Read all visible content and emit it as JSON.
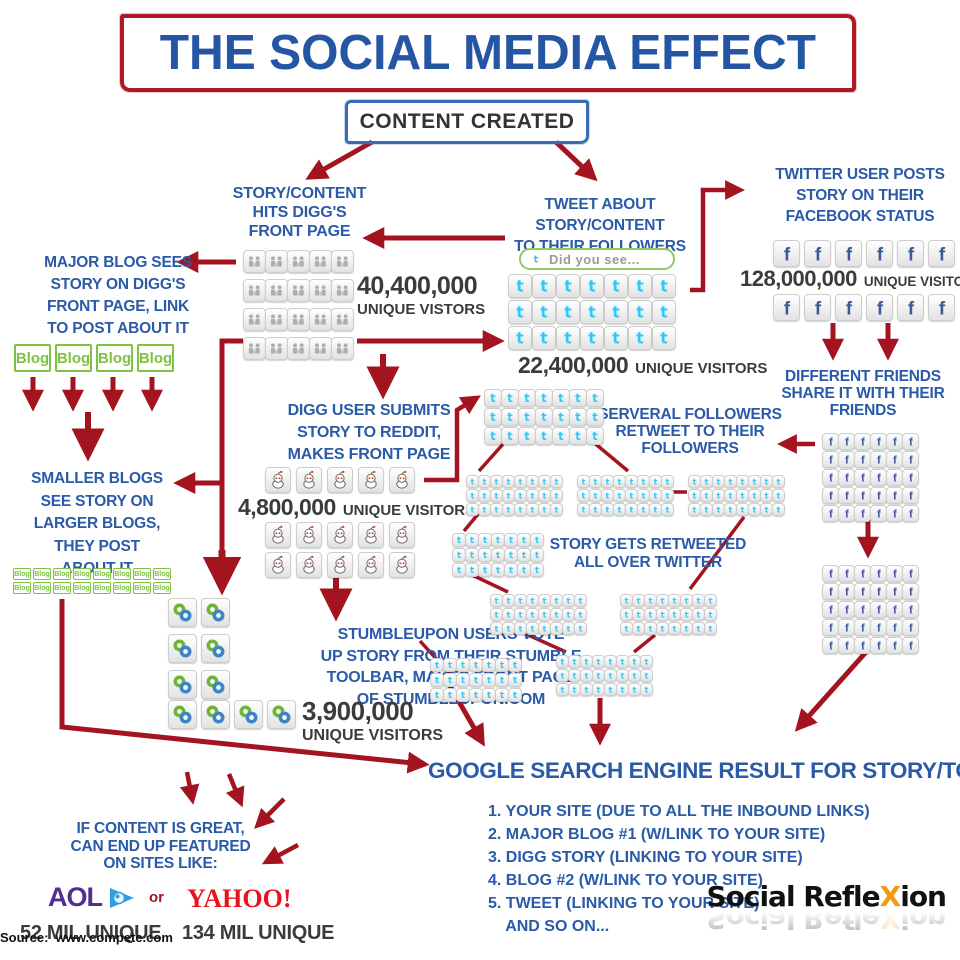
{
  "title": "THE SOCIAL MEDIA EFFECT",
  "content_created": "CONTENT CREATED",
  "colors": {
    "arrow_red": "#a31420",
    "text_blue": "#2a5aa8",
    "text_dark": "#3b3b3b",
    "blog_green": "#7dc242",
    "twitter_blue": "#34c7f4",
    "facebook_blue": "#3b5998",
    "aol_purple": "#4f2f93",
    "yahoo_red": "#e8131d",
    "brand_x_orange": "#f49a11"
  },
  "nodes": {
    "digg_story": {
      "text": "STORY/CONTENT\nHITS DIGG'S\nFRONT PAGE"
    },
    "digg_stat": {
      "number": "40,400,000",
      "label": "UNIQUE VISTORS"
    },
    "major_blog": {
      "text": "MAJOR BLOG SEES\nSTORY ON DIGG'S\nFRONT PAGE, LINK\nTO POST ABOUT IT"
    },
    "smaller_blogs": {
      "text": "SMALLER BLOGS\nSEE STORY ON\nLARGER BLOGS,\nTHEY POST\nABOUT IT"
    },
    "reddit": {
      "text": "DIGG USER SUBMITS\nSTORY TO REDDIT,\nMAKES FRONT PAGE"
    },
    "reddit_stat": {
      "number": "4,800,000",
      "label": "UNIQUE VISITORS"
    },
    "stumbleupon": {
      "text": "STUMBLEUPON USERS VOTE\nUP STORY FROM THEIR STUMBLE\nTOOLBAR, MAKES FRONT PAGE\nOF STUMBLEUPON.COM"
    },
    "su_stat": {
      "number": "3,900,000",
      "label": "UNIQUE VISITORS"
    },
    "tweet_about": {
      "text": "TWEET ABOUT\nSTORY/CONTENT\nTO THEIR FOLLOWERS"
    },
    "tweet_box": {
      "text": "Did you see..."
    },
    "twitter_stat": {
      "number": "22,400,000",
      "label": "UNIQUE VISITORS"
    },
    "several_followers": {
      "text": "SERVERAL FOLLOWERS\nRETWEET TO THEIR\nFOLLOWERS"
    },
    "retweeted": {
      "text": "STORY GETS RETWEETED\nALL OVER TWITTER"
    },
    "fb_post": {
      "text": "TWITTER USER POSTS\nSTORY ON THEIR\nFACEBOOK STATUS"
    },
    "fb_stat": {
      "number": "128,000,000",
      "label": "UNIQUE VISITORS"
    },
    "different_friends": {
      "text": "DIFFERENT FRIENDS\nSHARE IT WITH THEIR\nFRIENDS"
    },
    "google": {
      "title": "GOOGLE SEARCH ENGINE RESULT FOR STORY/TOPIC",
      "results": [
        "1. YOUR SITE (DUE TO ALL THE INBOUND LINKS)",
        "2. MAJOR BLOG #1 (W/LINK TO YOUR SITE)",
        "3. DIGG STORY (LINKING TO YOUR SITE)",
        "4. BLOG #2 (W/LINK TO YOUR SITE)",
        "5. TWEET (LINKING TO YOUR SITE)",
        "    AND SO ON..."
      ]
    },
    "featured": {
      "text": "IF CONTENT IS GREAT,\nCAN END UP FEATURED\nON SITES LIKE:",
      "aol": "AOL",
      "or": "or",
      "yahoo": "YAHOO!",
      "aol_stat": "52 MIL UNIQUE",
      "yahoo_stat": "134 MIL UNIQUE"
    },
    "blog_label": "Blog",
    "footer": {
      "brand_pre": "Social Refle",
      "brand_x": "X",
      "brand_post": "ion",
      "source": "Source:  www.compete.com"
    }
  },
  "grids": {
    "digg_main": {
      "icon": "digg-icon",
      "rows": 4,
      "cols": 5,
      "size": 21,
      "gx": 1,
      "gy": 6
    },
    "twitter_main": {
      "icon": "twitter-icon",
      "rows": 3,
      "cols": 7,
      "size": 22,
      "gx": 2,
      "gy": 2
    },
    "twitter_mid": {
      "icon": "twitter-icon",
      "rows": 3,
      "cols": 7,
      "size": 16,
      "gx": 1,
      "gy": 1
    },
    "tw_3x8": {
      "icon": "twitter-icon",
      "rows": 3,
      "cols": 8,
      "size": 11,
      "gx": 1,
      "gy": 1
    },
    "tw_3x7": {
      "icon": "twitter-icon",
      "rows": 3,
      "cols": 7,
      "size": 12,
      "gx": 1,
      "gy": 1
    },
    "fb_row": {
      "icon": "facebook-icon",
      "rows": 1,
      "cols": 6,
      "size": 25,
      "gx": 6,
      "gy": 4
    },
    "fb_grid": {
      "icon": "facebook-icon",
      "rows": 5,
      "cols": 6,
      "size": 15,
      "gx": 1,
      "gy": 1
    },
    "reddit_row": {
      "icon": "reddit-icon",
      "rows": 1,
      "cols": 5,
      "size": 24,
      "gx": 7,
      "gy": 5
    },
    "su_3x2": {
      "icon": "stumbleupon-icon",
      "rows": 3,
      "cols": 2,
      "size": 27,
      "gx": 6,
      "gy": 7
    },
    "su_1x4": {
      "icon": "stumbleupon-icon",
      "rows": 1,
      "cols": 4,
      "size": 27,
      "gx": 6,
      "gy": 6
    },
    "blog_row": {
      "icon": "blog-box",
      "rows": 1,
      "cols": 4,
      "w": 37,
      "h": 28,
      "fs": 15,
      "bw": 2,
      "gx": 4,
      "gy": 4
    },
    "blog_small": {
      "icon": "blog-box",
      "rows": 2,
      "cols": 8,
      "w": 18,
      "h": 12,
      "fs": 7,
      "bw": 1,
      "gx": 2,
      "gy": 2
    }
  }
}
